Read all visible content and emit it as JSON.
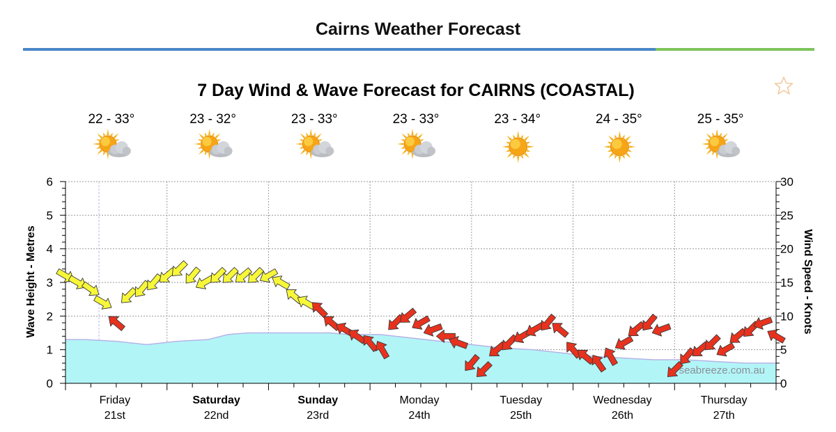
{
  "header": {
    "title": "Cairns Weather Forecast"
  },
  "favourite": {
    "icon": "star-outline-icon"
  },
  "colors": {
    "wave_fill": "#b2f5f7",
    "wave_line": "#b7b3e6",
    "wind_light": "#f7f73a",
    "wind_strong": "#e8321e",
    "accent_blue": "#4a86c8",
    "accent_green": "#7cc35b"
  },
  "chart_data": {
    "type": "area",
    "title": "7 Day Wind & Wave Forecast for CAIRNS (COASTAL)",
    "watermark": "seabreeze.com.au",
    "y_left": {
      "label": "Wave Height - Metres",
      "range": [
        0,
        6
      ],
      "ticks": [
        0,
        1,
        2,
        3,
        4,
        5,
        6
      ]
    },
    "y_right": {
      "label": "Wind Speed - Knots",
      "range": [
        0,
        30
      ],
      "ticks": [
        0,
        5,
        10,
        15,
        20,
        25,
        30
      ]
    },
    "grid": true,
    "days": [
      {
        "day": "Friday",
        "date": "21st",
        "bold": false,
        "temp": "22 - 33°",
        "icon": "partly-cloudy"
      },
      {
        "day": "Saturday",
        "date": "22nd",
        "bold": true,
        "temp": "23 - 32°",
        "icon": "partly-cloudy"
      },
      {
        "day": "Sunday",
        "date": "23rd",
        "bold": true,
        "temp": "23 - 33°",
        "icon": "partly-cloudy"
      },
      {
        "day": "Monday",
        "date": "24th",
        "bold": false,
        "temp": "23 - 33°",
        "icon": "partly-cloudy"
      },
      {
        "day": "Tuesday",
        "date": "25th",
        "bold": false,
        "temp": "23 - 34°",
        "icon": "sunny"
      },
      {
        "day": "Wednesday",
        "date": "26th",
        "bold": false,
        "temp": "24 - 35°",
        "icon": "sunny"
      },
      {
        "day": "Thursday",
        "date": "27th",
        "bold": false,
        "temp": "25 - 35°",
        "icon": "partly-cloudy"
      }
    ],
    "series": [
      {
        "kind": "wave_height_m",
        "x_days": [
          0,
          0.2,
          0.5,
          0.8,
          1.1,
          1.4,
          1.6,
          1.8,
          2.0,
          2.3,
          2.6,
          2.8,
          3.1,
          3.4,
          3.7,
          4.0,
          4.3,
          4.6,
          4.9,
          5.2,
          5.5,
          5.8,
          6.1,
          6.4,
          6.7,
          7.0
        ],
        "values": [
          1.3,
          1.3,
          1.25,
          1.15,
          1.25,
          1.3,
          1.45,
          1.5,
          1.5,
          1.5,
          1.5,
          1.45,
          1.45,
          1.35,
          1.25,
          1.15,
          1.05,
          1.0,
          0.9,
          0.8,
          0.75,
          0.7,
          0.7,
          0.65,
          0.6,
          0.6
        ]
      },
      {
        "kind": "wind_speed_kt",
        "x_days": [
          0,
          0.12,
          0.25,
          0.37,
          0.5,
          0.62,
          0.75,
          0.87,
          1.0,
          1.12,
          1.25,
          1.37,
          1.5,
          1.62,
          1.75,
          1.87,
          2.0,
          2.12,
          2.25,
          2.37,
          2.5,
          2.62,
          2.75,
          2.87,
          3.0,
          3.12,
          3.25,
          3.37,
          3.5,
          3.62,
          3.75,
          3.87,
          4.0,
          4.12,
          4.25,
          4.37,
          4.5,
          4.62,
          4.75,
          4.87,
          5.0,
          5.12,
          5.25,
          5.37,
          5.5,
          5.62,
          5.75,
          5.87,
          6.0,
          6.12,
          6.25,
          6.37,
          6.5,
          6.62,
          6.75,
          6.87,
          7.0
        ],
        "values": [
          16,
          15,
          14,
          12,
          9,
          13,
          14,
          15,
          16,
          17,
          16,
          15,
          16,
          16,
          16,
          16,
          16,
          15,
          13,
          12,
          11,
          9,
          8,
          7,
          6,
          5,
          9,
          10,
          9,
          8,
          7,
          6,
          3,
          2,
          5,
          6,
          7,
          8,
          9,
          8,
          5,
          4,
          3,
          4,
          6,
          8,
          9,
          8,
          2,
          4,
          5,
          6,
          5,
          7,
          8,
          9,
          7
        ],
        "directions_deg": [
          300,
          300,
          305,
          300,
          130,
          45,
          40,
          40,
          50,
          45,
          40,
          60,
          45,
          45,
          50,
          45,
          60,
          120,
          130,
          120,
          135,
          130,
          120,
          125,
          140,
          150,
          45,
          50,
          60,
          70,
          90,
          110,
          40,
          45,
          50,
          45,
          60,
          60,
          40,
          130,
          140,
          130,
          145,
          150,
          60,
          50,
          40,
          70,
          45,
          40,
          50,
          45,
          60,
          50,
          45,
          70,
          120
        ],
        "color_threshold_kt": 12
      }
    ]
  }
}
